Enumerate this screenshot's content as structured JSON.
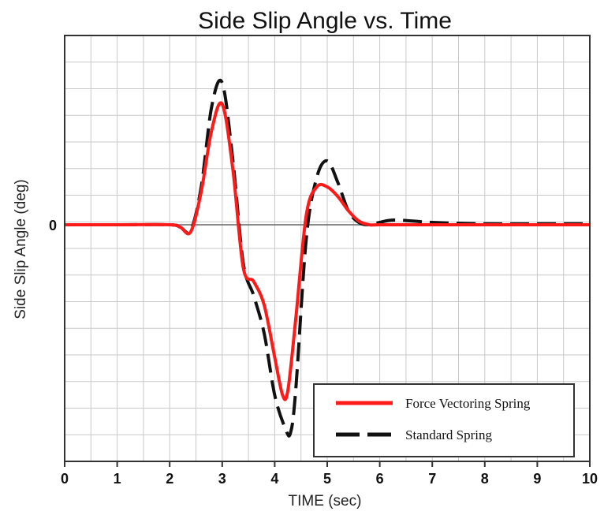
{
  "chart_data": {
    "type": "line",
    "title": "Side Slip Angle vs. Time",
    "xlabel": "TIME (sec)",
    "ylabel": "Side Slip Angle (deg)",
    "xlim": [
      0,
      10
    ],
    "x_ticks": [
      "0",
      "1",
      "2",
      "3",
      "4",
      "5",
      "6",
      "7",
      "8",
      "9",
      "10"
    ],
    "ylim": [
      -5,
      4
    ],
    "y_ticks": [
      "0"
    ],
    "grid": true,
    "legend_position": "bottom-right",
    "series": [
      {
        "name": "Force Vectoring Spring",
        "color": "#ff1a1a",
        "style": "solid",
        "x": [
          0,
          1,
          2,
          2.2,
          2.4,
          2.6,
          2.8,
          3.0,
          3.2,
          3.4,
          3.6,
          3.8,
          4.0,
          4.15,
          4.25,
          4.4,
          4.6,
          4.8,
          5.0,
          5.2,
          5.4,
          5.6,
          5.8,
          6.0,
          7,
          8,
          9,
          10
        ],
        "y": [
          0,
          0,
          0,
          -0.05,
          -0.15,
          0.7,
          2.0,
          2.55,
          1.2,
          -0.9,
          -1.2,
          -1.7,
          -2.8,
          -3.6,
          -3.5,
          -2.0,
          0.2,
          0.8,
          0.8,
          0.6,
          0.3,
          0.08,
          0.0,
          0.0,
          0,
          0,
          0,
          0
        ]
      },
      {
        "name": "Standard Spring",
        "color": "#111111",
        "style": "dashed",
        "x": [
          0,
          1,
          2,
          2.2,
          2.4,
          2.6,
          2.8,
          3.0,
          3.2,
          3.4,
          3.6,
          3.8,
          4.0,
          4.2,
          4.3,
          4.4,
          4.6,
          4.8,
          5.0,
          5.2,
          5.4,
          5.6,
          5.8,
          6.0,
          6.3,
          7,
          8,
          9,
          10
        ],
        "y": [
          0,
          0,
          0,
          -0.05,
          -0.12,
          0.8,
          2.5,
          3.0,
          1.4,
          -0.8,
          -1.5,
          -2.3,
          -3.6,
          -4.3,
          -4.4,
          -3.5,
          -0.3,
          1.0,
          1.35,
          0.9,
          0.3,
          0.05,
          0.0,
          0.05,
          0.1,
          0.05,
          0.02,
          0.02,
          0.02
        ]
      }
    ]
  }
}
